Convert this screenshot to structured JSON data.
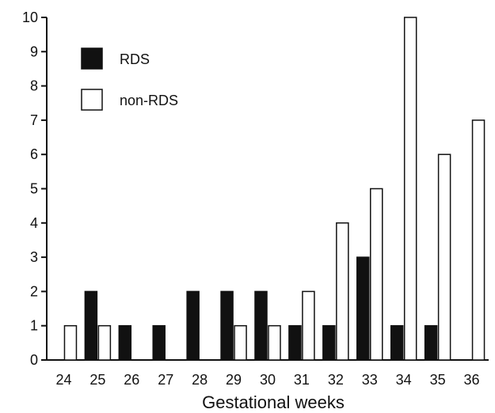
{
  "chart_data": {
    "type": "bar",
    "title": "",
    "xlabel": "Gestational weeks",
    "ylabel": "",
    "ylim": [
      0,
      10
    ],
    "yticks": [
      "0",
      "1",
      "2",
      "3",
      "4",
      "5",
      "6",
      "7",
      "8",
      "9",
      "10"
    ],
    "categories": [
      "24",
      "25",
      "26",
      "27",
      "28",
      "29",
      "30",
      "31",
      "32",
      "33",
      "34",
      "35",
      "36"
    ],
    "series": [
      {
        "name": "RDS",
        "color": "#111111",
        "values": [
          0,
          2,
          1,
          1,
          2,
          2,
          2,
          1,
          1,
          3,
          1,
          1,
          0
        ]
      },
      {
        "name": "non-RDS",
        "color": "#ffffff",
        "values": [
          1,
          1,
          0,
          0,
          0,
          1,
          1,
          2,
          4,
          5,
          10,
          6,
          7
        ]
      }
    ],
    "legend": "top-left",
    "grid": false
  }
}
